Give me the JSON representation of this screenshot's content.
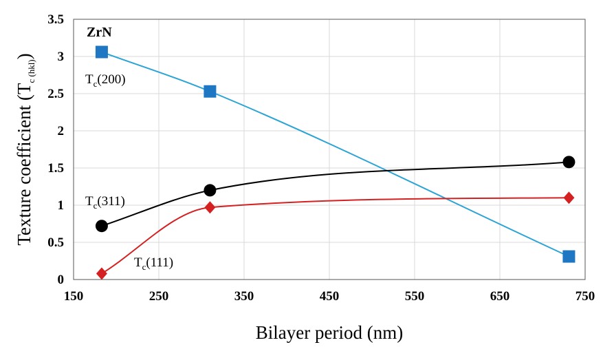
{
  "chart_data": {
    "type": "line",
    "panel_label": "ZrN",
    "xlabel": "Bilayer period (nm)",
    "ylabel": {
      "main": "Texture  coefficient (T",
      "sub": "c (hkl)",
      "tail": ")"
    },
    "xlim": [
      150,
      750
    ],
    "ylim": [
      0,
      3.5
    ],
    "xticks": [
      "150",
      "250",
      "350",
      "450",
      "550",
      "650",
      "750"
    ],
    "yticks": [
      "0",
      "0.5",
      "1",
      "1.5",
      "2",
      "2.5",
      "3",
      "3.5"
    ],
    "grid": true,
    "series": [
      {
        "label": {
          "main": "T",
          "sub": "c",
          "tail": "(200)"
        },
        "marker": "square",
        "color": "#1f77c4",
        "line_color": "#2aa3d6",
        "x": [
          183,
          310,
          731
        ],
        "y": [
          3.06,
          2.53,
          0.31
        ]
      },
      {
        "label": {
          "main": "T",
          "sub": "c",
          "tail": "(311)"
        },
        "marker": "circle",
        "color": "#000000",
        "line_color": "#000000",
        "x": [
          183,
          310,
          731
        ],
        "y": [
          0.72,
          1.2,
          1.58
        ]
      },
      {
        "label": {
          "main": "T",
          "sub": "c",
          "tail": "(111)"
        },
        "marker": "diamond",
        "color": "#d42020",
        "line_color": "#d42020",
        "x": [
          183,
          310,
          731
        ],
        "y": [
          0.08,
          0.97,
          1.1
        ]
      }
    ]
  }
}
